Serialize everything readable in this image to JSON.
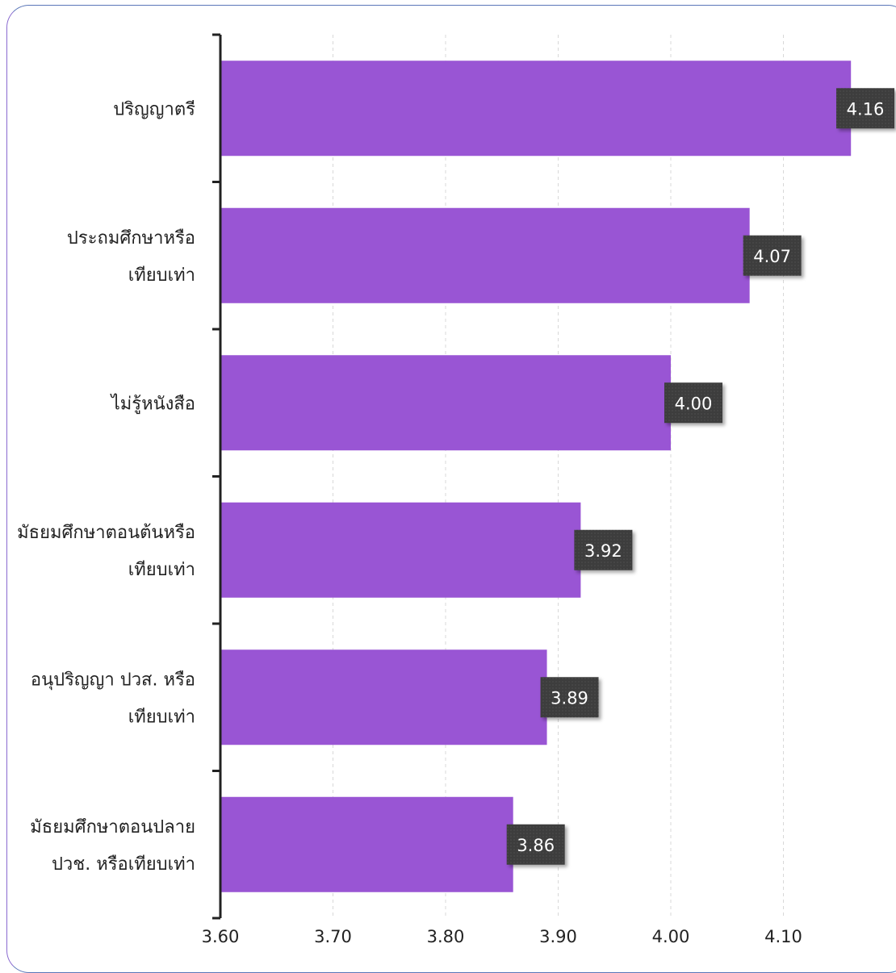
{
  "chart_data": {
    "type": "bar",
    "orientation": "horizontal",
    "categories": [
      "ปริญญาตรี",
      "ประถมศึกษาหรือเทียบเท่า",
      "ไม่รู้หนังสือ",
      "มัธยมศึกษาตอนต้นหรือเทียบเท่า",
      "อนุปริญญา ปวส. หรือเทียบเท่า",
      "มัธยมศึกษาตอนปลาย ปวช. หรือเทียบเท่า"
    ],
    "category_lines": [
      [
        "ปริญญาตรี"
      ],
      [
        "ประถมศึกษาหรือ",
        "เทียบเท่า"
      ],
      [
        "ไม่รู้หนังสือ"
      ],
      [
        "มัธยมศึกษาตอนต้นหรือ",
        "เทียบเท่า"
      ],
      [
        "อนุปริญญา ปวส. หรือ",
        "เทียบเท่า"
      ],
      [
        "มัธยมศึกษาตอนปลาย",
        "ปวช. หรือเทียบเท่า"
      ]
    ],
    "values": [
      4.16,
      4.07,
      4.0,
      3.92,
      3.89,
      3.86
    ],
    "data_labels": [
      "4.16",
      "4.07",
      "4.00",
      "3.92",
      "3.89",
      "3.86"
    ],
    "xlim": [
      3.6,
      4.2
    ],
    "xticks": [
      3.6,
      3.7,
      3.8,
      3.9,
      4.0,
      4.1
    ],
    "xtick_labels": [
      "3.60",
      "3.70",
      "3.80",
      "3.90",
      "4.00",
      "4.10"
    ],
    "grid": "vertical-dashed",
    "title": "",
    "xlabel": "",
    "ylabel": "",
    "colors": {
      "bar": "#9955d4",
      "label_box": "#3e3e3e",
      "grid": "#d8d8d8",
      "axis": "#222222",
      "frame": "#5a76b8"
    }
  }
}
